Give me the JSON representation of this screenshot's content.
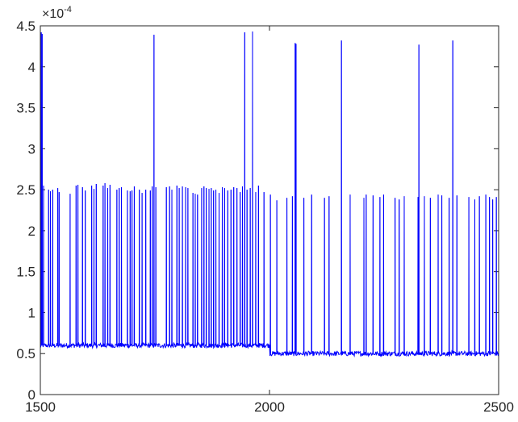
{
  "chart_data": {
    "type": "line",
    "title": "",
    "xlabel": "",
    "ylabel": "",
    "xlim": [
      1500,
      2500
    ],
    "ylim": [
      0,
      4.5
    ],
    "y_exponent_label": {
      "base": "×10",
      "exponent": "-4"
    },
    "grid": false,
    "legend": "none",
    "x_ticks": [
      1500,
      2000,
      2500
    ],
    "x_tick_labels": [
      "1500",
      "2000",
      "2500"
    ],
    "y_ticks": [
      0,
      0.5,
      1,
      1.5,
      2,
      2.5,
      3,
      3.5,
      4,
      4.5
    ],
    "y_tick_labels": [
      "0",
      "0.5",
      "1",
      "1.5",
      "2",
      "2.5",
      "3",
      "3.5",
      "4",
      "4.5"
    ],
    "series": [
      {
        "color": "#0000ff",
        "baseline_segments": [
          {
            "x_start": 1500,
            "x_end": 2000,
            "level": 0.6,
            "noise": 0.03
          },
          {
            "x_start": 2000,
            "x_end": 2500,
            "level": 0.5,
            "noise": 0.03
          }
        ],
        "spikes": [
          {
            "x": 1502,
            "y": 4.42
          },
          {
            "x": 1504,
            "y": 4.4
          },
          {
            "x": 1507,
            "y": 2.55
          },
          {
            "x": 1518,
            "y": 2.5
          },
          {
            "x": 1522,
            "y": 2.48
          },
          {
            "x": 1527,
            "y": 2.5
          },
          {
            "x": 1538,
            "y": 2.52
          },
          {
            "x": 1541,
            "y": 2.47
          },
          {
            "x": 1565,
            "y": 2.45
          },
          {
            "x": 1578,
            "y": 2.55
          },
          {
            "x": 1582,
            "y": 2.56
          },
          {
            "x": 1592,
            "y": 2.53
          },
          {
            "x": 1598,
            "y": 2.49
          },
          {
            "x": 1612,
            "y": 2.55
          },
          {
            "x": 1617,
            "y": 2.51
          },
          {
            "x": 1622,
            "y": 2.57
          },
          {
            "x": 1637,
            "y": 2.55
          },
          {
            "x": 1641,
            "y": 2.58
          },
          {
            "x": 1647,
            "y": 2.52
          },
          {
            "x": 1652,
            "y": 2.56
          },
          {
            "x": 1667,
            "y": 2.5
          },
          {
            "x": 1672,
            "y": 2.52
          },
          {
            "x": 1677,
            "y": 2.53
          },
          {
            "x": 1690,
            "y": 2.49
          },
          {
            "x": 1696,
            "y": 2.48
          },
          {
            "x": 1700,
            "y": 2.49
          },
          {
            "x": 1705,
            "y": 2.54
          },
          {
            "x": 1716,
            "y": 2.5
          },
          {
            "x": 1722,
            "y": 2.46
          },
          {
            "x": 1730,
            "y": 2.5
          },
          {
            "x": 1740,
            "y": 2.49
          },
          {
            "x": 1744,
            "y": 2.54
          },
          {
            "x": 1748,
            "y": 4.39
          },
          {
            "x": 1752,
            "y": 2.53
          },
          {
            "x": 1775,
            "y": 2.53
          },
          {
            "x": 1782,
            "y": 2.54
          },
          {
            "x": 1787,
            "y": 2.5
          },
          {
            "x": 1798,
            "y": 2.55
          },
          {
            "x": 1803,
            "y": 2.52
          },
          {
            "x": 1810,
            "y": 2.54
          },
          {
            "x": 1817,
            "y": 2.53
          },
          {
            "x": 1822,
            "y": 2.52
          },
          {
            "x": 1833,
            "y": 2.46
          },
          {
            "x": 1838,
            "y": 2.45
          },
          {
            "x": 1843,
            "y": 2.44
          },
          {
            "x": 1852,
            "y": 2.52
          },
          {
            "x": 1857,
            "y": 2.54
          },
          {
            "x": 1862,
            "y": 2.52
          },
          {
            "x": 1868,
            "y": 2.51
          },
          {
            "x": 1873,
            "y": 2.52
          },
          {
            "x": 1878,
            "y": 2.49
          },
          {
            "x": 1883,
            "y": 2.5
          },
          {
            "x": 1890,
            "y": 2.46
          },
          {
            "x": 1897,
            "y": 2.53
          },
          {
            "x": 1902,
            "y": 2.52
          },
          {
            "x": 1909,
            "y": 2.49
          },
          {
            "x": 1916,
            "y": 2.5
          },
          {
            "x": 1922,
            "y": 2.53
          },
          {
            "x": 1929,
            "y": 2.52
          },
          {
            "x": 1936,
            "y": 2.47
          },
          {
            "x": 1941,
            "y": 2.54
          },
          {
            "x": 1946,
            "y": 4.42
          },
          {
            "x": 1951,
            "y": 2.5
          },
          {
            "x": 1958,
            "y": 2.52
          },
          {
            "x": 1963,
            "y": 4.43
          },
          {
            "x": 1970,
            "y": 2.47
          },
          {
            "x": 1976,
            "y": 2.55
          },
          {
            "x": 1988,
            "y": 2.47
          },
          {
            "x": 2002,
            "y": 2.44
          },
          {
            "x": 2016,
            "y": 2.37
          },
          {
            "x": 2038,
            "y": 2.4
          },
          {
            "x": 2050,
            "y": 2.42
          },
          {
            "x": 2056,
            "y": 4.29
          },
          {
            "x": 2058,
            "y": 4.28
          },
          {
            "x": 2075,
            "y": 2.4
          },
          {
            "x": 2092,
            "y": 2.44
          },
          {
            "x": 2120,
            "y": 2.4
          },
          {
            "x": 2130,
            "y": 2.42
          },
          {
            "x": 2157,
            "y": 4.32
          },
          {
            "x": 2176,
            "y": 2.44
          },
          {
            "x": 2206,
            "y": 2.4
          },
          {
            "x": 2211,
            "y": 2.44
          },
          {
            "x": 2226,
            "y": 2.43
          },
          {
            "x": 2241,
            "y": 2.41
          },
          {
            "x": 2249,
            "y": 2.44
          },
          {
            "x": 2274,
            "y": 2.4
          },
          {
            "x": 2283,
            "y": 2.38
          },
          {
            "x": 2294,
            "y": 2.42
          },
          {
            "x": 2324,
            "y": 2.41
          },
          {
            "x": 2326,
            "y": 4.27
          },
          {
            "x": 2338,
            "y": 2.42
          },
          {
            "x": 2351,
            "y": 2.4
          },
          {
            "x": 2368,
            "y": 2.44
          },
          {
            "x": 2376,
            "y": 2.43
          },
          {
            "x": 2392,
            "y": 2.4
          },
          {
            "x": 2400,
            "y": 4.32
          },
          {
            "x": 2409,
            "y": 2.43
          },
          {
            "x": 2435,
            "y": 2.41
          },
          {
            "x": 2448,
            "y": 2.38
          },
          {
            "x": 2458,
            "y": 2.42
          },
          {
            "x": 2472,
            "y": 2.44
          },
          {
            "x": 2480,
            "y": 2.41
          },
          {
            "x": 2487,
            "y": 2.38
          },
          {
            "x": 2495,
            "y": 2.41
          }
        ]
      }
    ]
  }
}
